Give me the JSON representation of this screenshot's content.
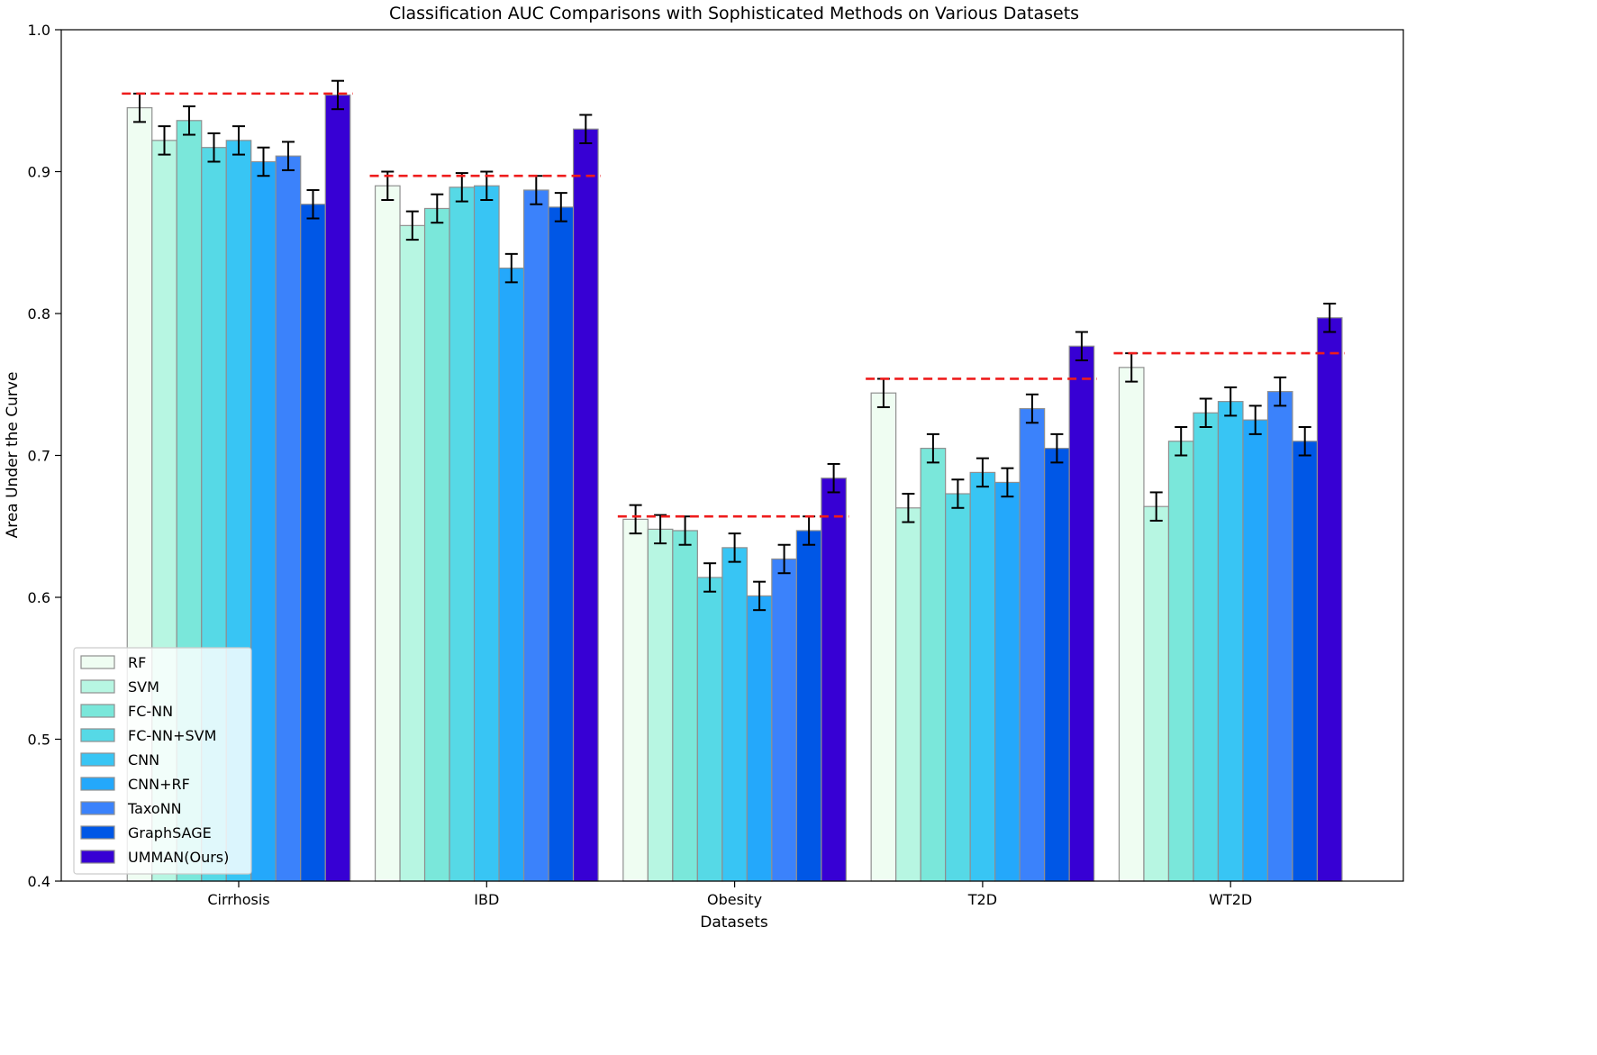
{
  "chart_data": {
    "type": "bar",
    "title": "Classification AUC Comparisons with Sophisticated Methods on Various Datasets",
    "xlabel": "Datasets",
    "ylabel": "Area Under the Curve",
    "ylim": [
      0.4,
      1.0
    ],
    "yticks": [
      "0.4",
      "0.5",
      "0.6",
      "0.7",
      "0.8",
      "0.9",
      "1.0"
    ],
    "categories": [
      "Cirrhosis",
      "IBD",
      "Obesity",
      "T2D",
      "WT2D"
    ],
    "legend_position": "lower-left",
    "grid": false,
    "series": [
      {
        "name": "RF",
        "color": "#effdf2",
        "values": [
          0.945,
          0.89,
          0.655,
          0.744,
          0.762
        ],
        "errors": [
          0.01,
          0.01,
          0.01,
          0.01,
          0.01
        ]
      },
      {
        "name": "SVM",
        "color": "#b7f6e2",
        "values": [
          0.922,
          0.862,
          0.648,
          0.663,
          0.664
        ],
        "errors": [
          0.01,
          0.01,
          0.01,
          0.01,
          0.01
        ]
      },
      {
        "name": "FC-NN",
        "color": "#7ae7da",
        "values": [
          0.936,
          0.874,
          0.647,
          0.705,
          0.71
        ],
        "errors": [
          0.01,
          0.01,
          0.01,
          0.01,
          0.01
        ]
      },
      {
        "name": "FC-NN+SVM",
        "color": "#56d9e6",
        "values": [
          0.917,
          0.889,
          0.614,
          0.673,
          0.73
        ],
        "errors": [
          0.01,
          0.01,
          0.01,
          0.01,
          0.01
        ]
      },
      {
        "name": "CNN",
        "color": "#38c5f4",
        "values": [
          0.922,
          0.89,
          0.635,
          0.688,
          0.738
        ],
        "errors": [
          0.01,
          0.01,
          0.01,
          0.01,
          0.01
        ]
      },
      {
        "name": "CNN+RF",
        "color": "#24a8fb",
        "values": [
          0.907,
          0.832,
          0.601,
          0.681,
          0.725
        ],
        "errors": [
          0.01,
          0.01,
          0.01,
          0.01,
          0.01
        ]
      },
      {
        "name": "TaxoNN",
        "color": "#3b82fb",
        "values": [
          0.911,
          0.887,
          0.627,
          0.733,
          0.745
        ],
        "errors": [
          0.01,
          0.01,
          0.01,
          0.01,
          0.01
        ]
      },
      {
        "name": "GraphSAGE",
        "color": "#0057e6",
        "values": [
          0.877,
          0.875,
          0.647,
          0.705,
          0.71
        ],
        "errors": [
          0.01,
          0.01,
          0.01,
          0.01,
          0.01
        ]
      },
      {
        "name": "UMMAN(Ours)",
        "color": "#3700d4",
        "values": [
          0.954,
          0.93,
          0.684,
          0.777,
          0.797
        ],
        "errors": [
          0.01,
          0.01,
          0.01,
          0.01,
          0.01
        ]
      }
    ],
    "reference_lines": {
      "color": "#ee1c1c",
      "values": [
        0.955,
        0.897,
        0.657,
        0.754,
        0.772
      ]
    }
  }
}
